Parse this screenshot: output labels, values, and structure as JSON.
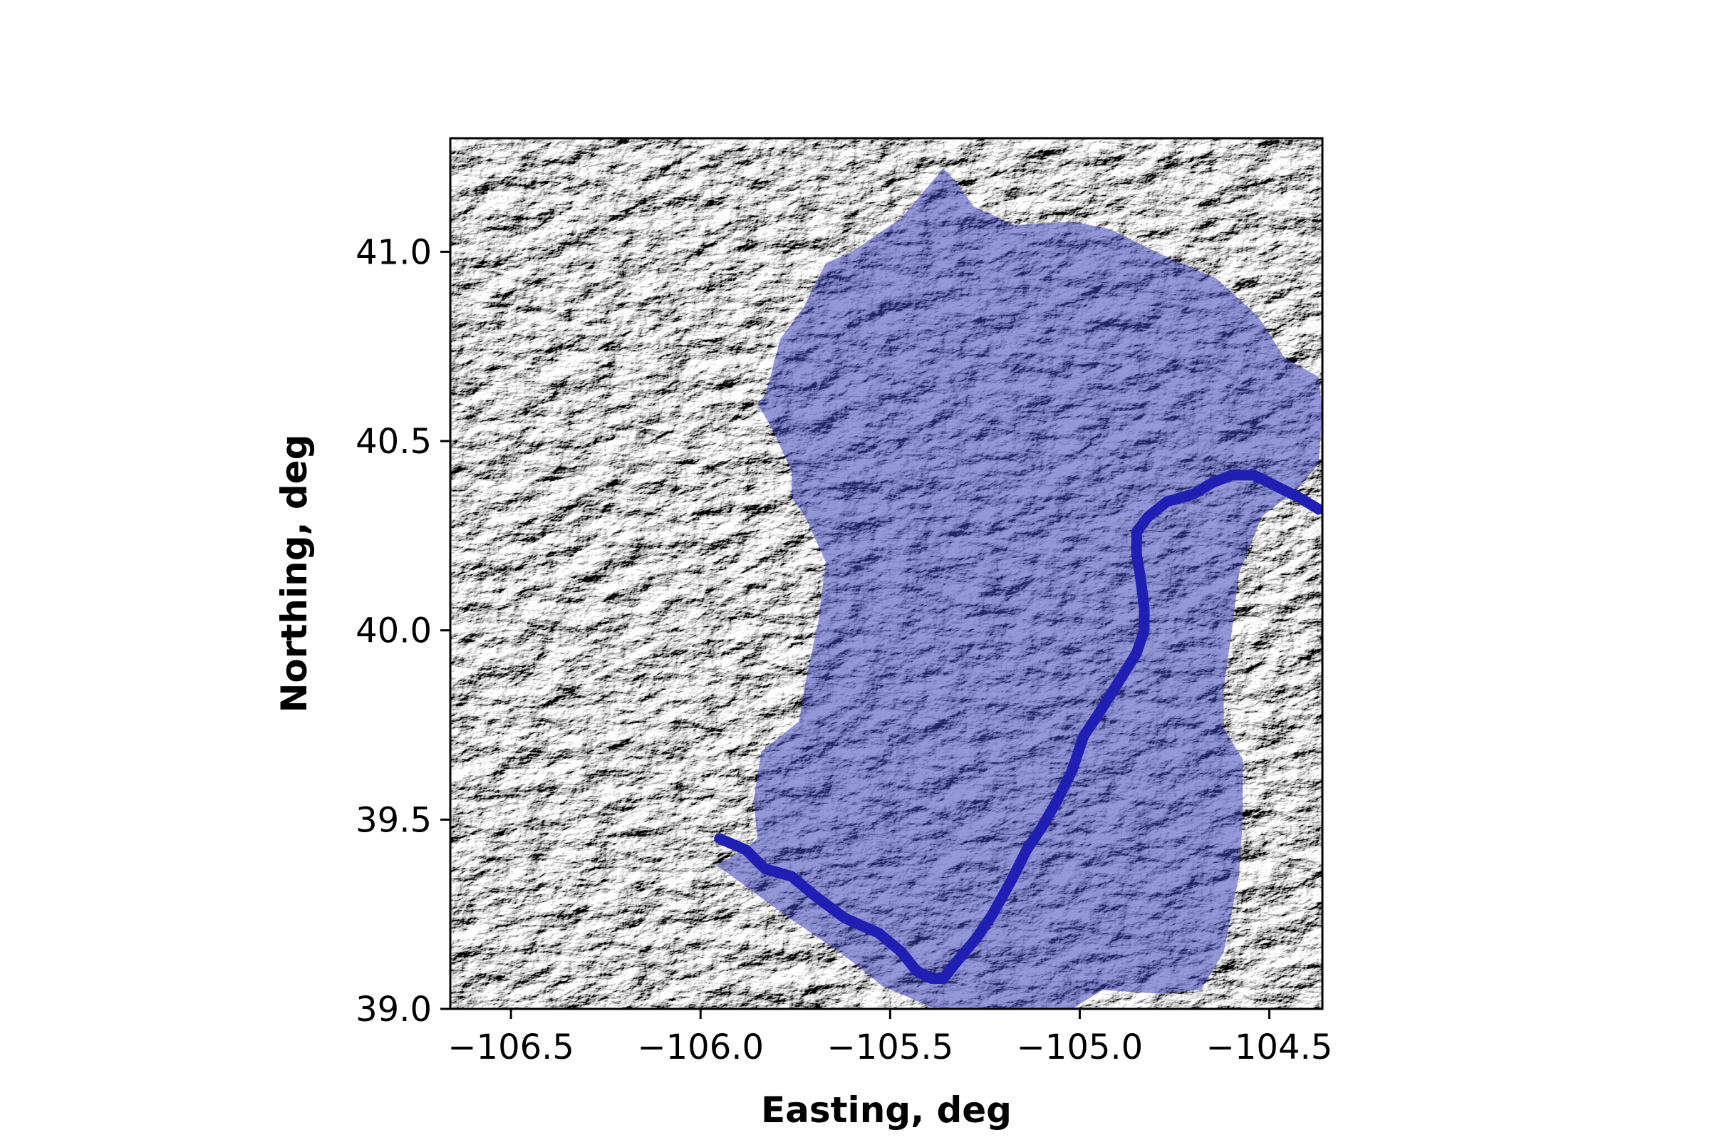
{
  "chart_data": {
    "type": "map",
    "title": "",
    "xlabel": "Easting, deg",
    "ylabel": "Northing, deg",
    "xlim": [
      -106.66,
      -104.36
    ],
    "ylim": [
      39.0,
      41.3
    ],
    "xticks": [
      -106.5,
      -106.0,
      -105.5,
      -105.0,
      -104.5
    ],
    "xtick_labels": [
      "−106.5",
      "−106.0",
      "−105.5",
      "−105.0",
      "−104.5"
    ],
    "yticks": [
      39.0,
      39.5,
      40.0,
      40.5,
      41.0
    ],
    "ytick_labels": [
      "39.0",
      "39.5",
      "40.0",
      "40.5",
      "41.0"
    ],
    "background": "grayscale hillshade terrain",
    "colors": {
      "basin_fill": "#3d44b8",
      "basin_fill_opacity": 0.55,
      "river": "#1f1fb4"
    },
    "basin_polygon": [
      [
        -105.93,
        39.36
      ],
      [
        -105.78,
        39.25
      ],
      [
        -105.62,
        39.14
      ],
      [
        -105.52,
        39.06
      ],
      [
        -105.45,
        39.03
      ],
      [
        -105.38,
        39.0
      ],
      [
        -105.02,
        39.0
      ],
      [
        -104.94,
        39.05
      ],
      [
        -104.79,
        39.04
      ],
      [
        -104.68,
        39.05
      ],
      [
        -104.62,
        39.15
      ],
      [
        -104.58,
        39.35
      ],
      [
        -104.57,
        39.5
      ],
      [
        -104.57,
        39.66
      ],
      [
        -104.62,
        39.74
      ],
      [
        -104.62,
        39.85
      ],
      [
        -104.6,
        39.99
      ],
      [
        -104.58,
        40.15
      ],
      [
        -104.52,
        40.3
      ],
      [
        -104.42,
        40.38
      ],
      [
        -104.37,
        40.44
      ],
      [
        -104.36,
        40.58
      ],
      [
        -104.37,
        40.67
      ],
      [
        -104.46,
        40.72
      ],
      [
        -104.53,
        40.83
      ],
      [
        -104.64,
        40.93
      ],
      [
        -104.8,
        41.0
      ],
      [
        -104.92,
        41.06
      ],
      [
        -105.02,
        41.08
      ],
      [
        -105.17,
        41.07
      ],
      [
        -105.28,
        41.12
      ],
      [
        -105.33,
        41.19
      ],
      [
        -105.36,
        41.22
      ],
      [
        -105.47,
        41.09
      ],
      [
        -105.6,
        41.0
      ],
      [
        -105.67,
        40.97
      ],
      [
        -105.73,
        40.85
      ],
      [
        -105.79,
        40.77
      ],
      [
        -105.81,
        40.69
      ],
      [
        -105.83,
        40.62
      ],
      [
        -105.85,
        40.6
      ],
      [
        -105.81,
        40.53
      ],
      [
        -105.76,
        40.42
      ],
      [
        -105.76,
        40.35
      ],
      [
        -105.73,
        40.31
      ],
      [
        -105.71,
        40.27
      ],
      [
        -105.67,
        40.18
      ],
      [
        -105.69,
        40.02
      ],
      [
        -105.72,
        39.88
      ],
      [
        -105.74,
        39.76
      ],
      [
        -105.84,
        39.68
      ],
      [
        -105.86,
        39.55
      ],
      [
        -105.85,
        39.45
      ],
      [
        -105.9,
        39.41
      ],
      [
        -105.96,
        39.38
      ]
    ],
    "river_line": [
      [
        -105.95,
        39.45
      ],
      [
        -105.88,
        39.42
      ],
      [
        -105.83,
        39.37
      ],
      [
        -105.76,
        39.35
      ],
      [
        -105.7,
        39.3
      ],
      [
        -105.62,
        39.24
      ],
      [
        -105.53,
        39.2
      ],
      [
        -105.47,
        39.15
      ],
      [
        -105.43,
        39.1
      ],
      [
        -105.39,
        39.08
      ],
      [
        -105.36,
        39.08
      ],
      [
        -105.32,
        39.13
      ],
      [
        -105.27,
        39.19
      ],
      [
        -105.23,
        39.25
      ],
      [
        -105.18,
        39.34
      ],
      [
        -105.14,
        39.42
      ],
      [
        -105.1,
        39.48
      ],
      [
        -105.06,
        39.55
      ],
      [
        -105.02,
        39.63
      ],
      [
        -104.99,
        39.72
      ],
      [
        -104.95,
        39.78
      ],
      [
        -104.9,
        39.86
      ],
      [
        -104.85,
        39.94
      ],
      [
        -104.83,
        40.0
      ],
      [
        -104.83,
        40.06
      ],
      [
        -104.84,
        40.14
      ],
      [
        -104.85,
        40.2
      ],
      [
        -104.85,
        40.26
      ],
      [
        -104.82,
        40.3
      ],
      [
        -104.77,
        40.34
      ],
      [
        -104.7,
        40.36
      ],
      [
        -104.65,
        40.39
      ],
      [
        -104.6,
        40.41
      ],
      [
        -104.54,
        40.41
      ],
      [
        -104.48,
        40.38
      ],
      [
        -104.42,
        40.35
      ],
      [
        -104.37,
        40.32
      ]
    ]
  }
}
